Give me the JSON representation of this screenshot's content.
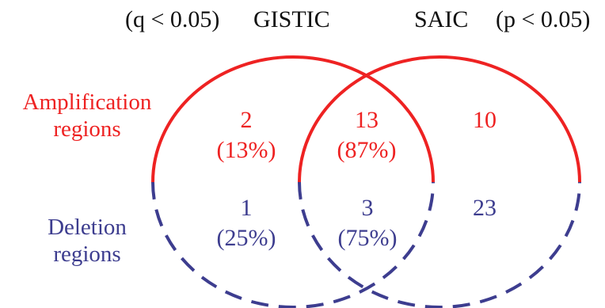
{
  "titles": {
    "left_threshold": "(q < 0.05)",
    "left_method": "GISTIC",
    "right_method": "SAIC",
    "right_threshold": "(p < 0.05)"
  },
  "rows": {
    "amplification": {
      "line1": "Amplification",
      "line2": "regions"
    },
    "deletion": {
      "line1": "Deletion",
      "line2": "regions"
    }
  },
  "amplification": {
    "gistic_only": {
      "count": "2",
      "percent": "(13%)"
    },
    "overlap": {
      "count": "13",
      "percent": "(87%)"
    },
    "saic_only": {
      "count": "10"
    }
  },
  "deletion": {
    "gistic_only": {
      "count": "1",
      "percent": "(25%)"
    },
    "overlap": {
      "count": "3",
      "percent": "(75%)"
    },
    "saic_only": {
      "count": "23"
    }
  },
  "colors": {
    "amplification": "#ee2222",
    "deletion": "#3d3d8f",
    "text": "#111111"
  }
}
